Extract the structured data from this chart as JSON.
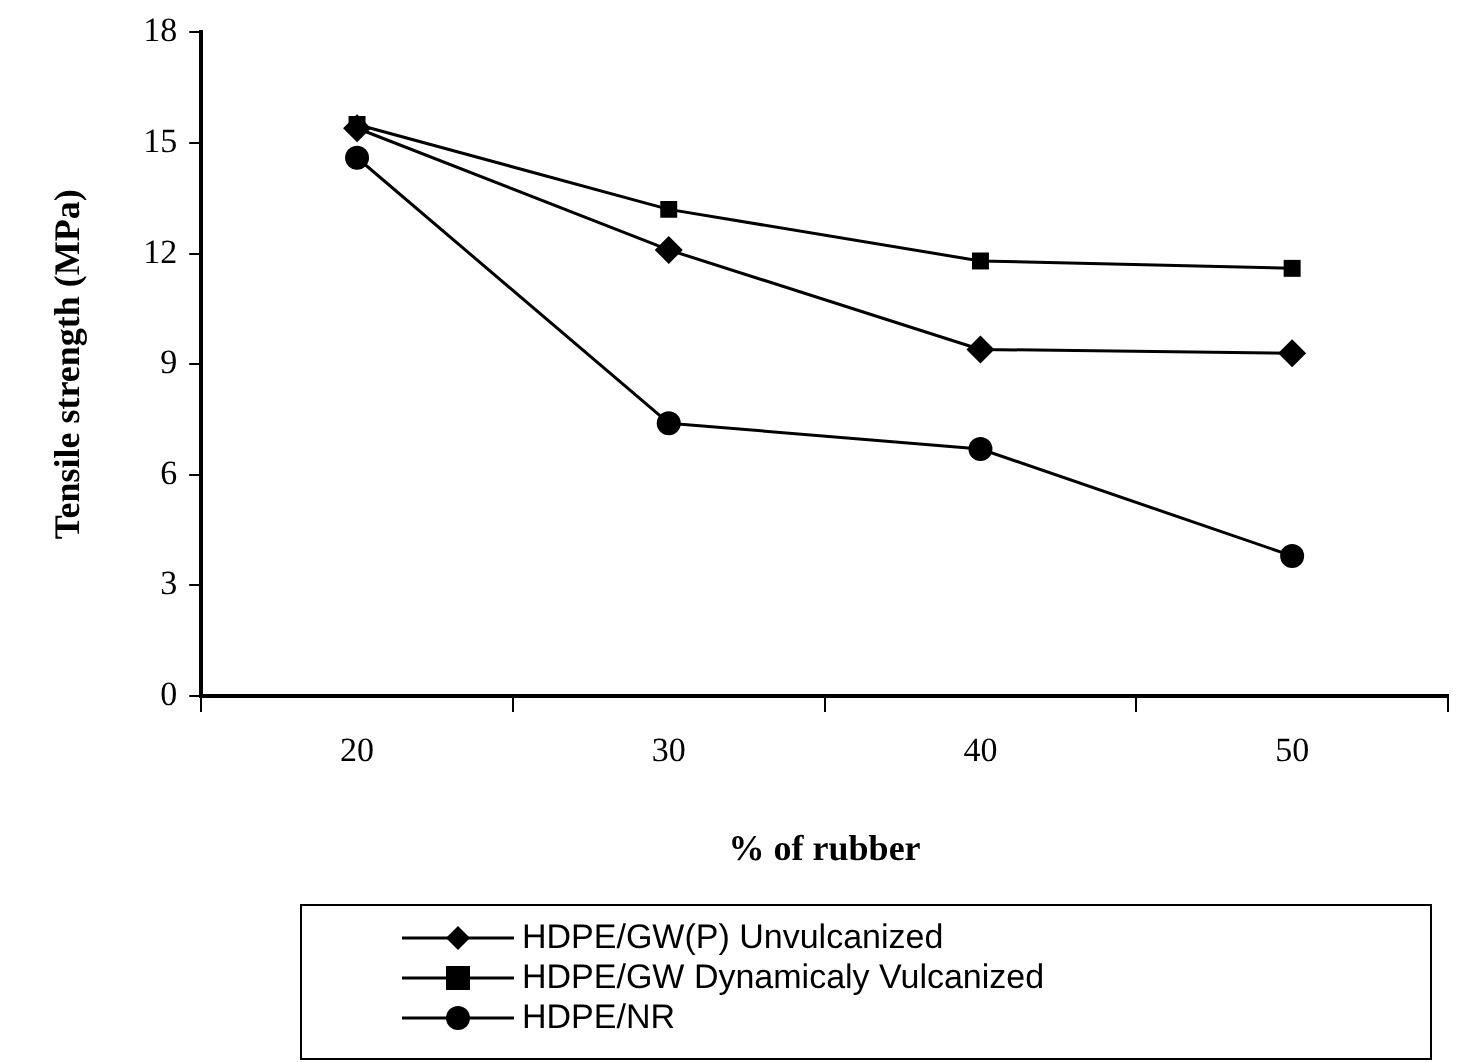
{
  "chart_data": {
    "type": "line",
    "xlabel": "% of rubber",
    "ylabel": "Tensile strength (MPa)",
    "categories": [
      "20",
      "30",
      "40",
      "50"
    ],
    "ylim": [
      0,
      18
    ],
    "yticks": [
      0,
      3,
      6,
      9,
      12,
      15,
      18
    ],
    "grid": false,
    "legend": "bottom",
    "line_style": "solid",
    "series": [
      {
        "name": "HDPE/GW(P) Unvulcanized",
        "color": "#000000",
        "marker": "diamond",
        "values": [
          15.4,
          12.1,
          9.4,
          9.3
        ]
      },
      {
        "name": "HDPE/GW Dynamicaly Vulcanized",
        "color": "#000000",
        "marker": "square",
        "values": [
          15.5,
          13.2,
          11.8,
          11.6
        ]
      },
      {
        "name": "HDPE/NR",
        "color": "#000000",
        "marker": "circle",
        "values": [
          14.6,
          7.4,
          6.7,
          3.8
        ]
      }
    ]
  }
}
